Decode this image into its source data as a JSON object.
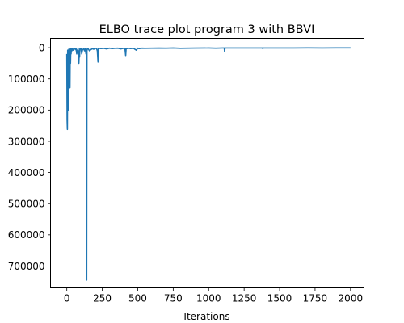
{
  "chart_data": {
    "type": "line",
    "title": "ELBO trace plot program 3 with BBVI",
    "xlabel": "Iterations",
    "ylabel": "",
    "xlim": [
      -115,
      2095
    ],
    "ylim": [
      -770000,
      30000
    ],
    "grid": false,
    "line_color": "#1f77b4",
    "x_ticks": [
      {
        "value": 0,
        "label": "0"
      },
      {
        "value": 250,
        "label": "250"
      },
      {
        "value": 500,
        "label": "500"
      },
      {
        "value": 750,
        "label": "750"
      },
      {
        "value": 1000,
        "label": "1000"
      },
      {
        "value": 1250,
        "label": "1250"
      },
      {
        "value": 1500,
        "label": "1500"
      },
      {
        "value": 1750,
        "label": "1750"
      },
      {
        "value": 2000,
        "label": "2000"
      }
    ],
    "y_ticks": [
      {
        "value": 0,
        "label": "0"
      },
      {
        "value": -100000,
        "label": "100000"
      },
      {
        "value": -200000,
        "label": "200000"
      },
      {
        "value": -300000,
        "label": "300000"
      },
      {
        "value": -400000,
        "label": "400000"
      },
      {
        "value": -500000,
        "label": "500000"
      },
      {
        "value": -600000,
        "label": "600000"
      },
      {
        "value": -700000,
        "label": "700000"
      }
    ],
    "series": [
      {
        "name": "",
        "x": [
          0,
          2,
          4,
          5,
          6,
          8,
          10,
          12,
          14,
          16,
          18,
          20,
          22,
          24,
          26,
          28,
          30,
          32,
          34,
          36,
          40,
          45,
          50,
          55,
          60,
          65,
          70,
          75,
          80,
          85,
          88,
          90,
          92,
          95,
          100,
          105,
          110,
          115,
          120,
          125,
          130,
          135,
          138,
          140,
          142,
          145,
          150,
          160,
          170,
          180,
          190,
          200,
          210,
          215,
          220,
          222,
          225,
          230,
          240,
          260,
          280,
          300,
          320,
          340,
          360,
          380,
          400,
          410,
          415,
          418,
          420,
          425,
          430,
          450,
          470,
          490,
          500,
          505,
          510,
          530,
          550,
          600,
          650,
          700,
          750,
          800,
          900,
          1000,
          1050,
          1100,
          1110,
          1112,
          1115,
          1120,
          1200,
          1300,
          1380,
          1382,
          1385,
          1400,
          1500,
          1600,
          1700,
          1800,
          1900,
          2000
        ],
        "y": [
          -20000,
          -230000,
          -262000,
          -150000,
          -8000,
          -60000,
          -200000,
          -10000,
          -5000,
          -130000,
          -20000,
          -6000,
          -128000,
          -4000,
          -50000,
          -3000,
          -20000,
          -5000,
          -2000,
          -10000,
          -3000,
          -8000,
          -4000,
          -2000,
          -6000,
          -3000,
          -20000,
          -8000,
          -3000,
          -50000,
          -10000,
          -30000,
          -4000,
          -2000,
          -3000,
          -20000,
          -8000,
          -5000,
          -4000,
          -10000,
          -3000,
          -20000,
          -5000,
          -745000,
          -10000,
          -4000,
          -3000,
          -10000,
          -6000,
          -3000,
          -5000,
          -2000,
          -3000,
          -10000,
          -46000,
          -3000,
          -4000,
          -2000,
          -3000,
          -2000,
          -4000,
          -1500,
          -3000,
          -2000,
          -1500,
          -4000,
          -2000,
          -3000,
          -25000,
          -4000,
          -2000,
          -3000,
          -1500,
          -3000,
          -2000,
          -8000,
          -1500,
          -2500,
          -3000,
          -1500,
          -2000,
          -1500,
          -1200,
          -1500,
          -1000,
          -2000,
          -1200,
          -1000,
          -1500,
          -1000,
          -1000,
          -12000,
          -1000,
          -1000,
          -1000,
          -800,
          -1000,
          -3000,
          -800,
          -1000,
          -800,
          -900,
          -700,
          -800,
          -700,
          -700
        ]
      }
    ]
  }
}
